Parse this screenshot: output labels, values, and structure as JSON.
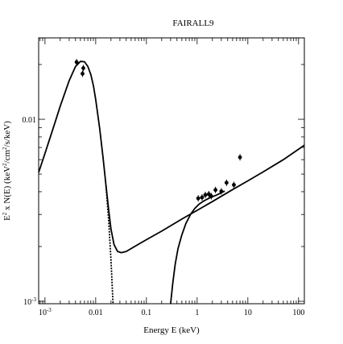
{
  "chart_data": {
    "type": "scatter",
    "title": "FAIRALL9",
    "xlabel": "Energy E (keV)",
    "ylabel_parts": {
      "e": "E",
      "sup1": "2",
      "mid": " x N(E) (keV",
      "sup2": "2",
      "unit": "/cm",
      "sup3": "2",
      "tail": "/s/keV)"
    },
    "x_scale": "log",
    "y_scale": "log",
    "xlim": [
      0.00075,
      130
    ],
    "ylim": [
      0.00097,
      0.028
    ],
    "x_tick_labels": [
      {
        "value": 0.001,
        "base": "10",
        "exp": "-3"
      },
      {
        "value": 0.01,
        "base": "0.01",
        "exp": ""
      },
      {
        "value": 0.1,
        "base": "0.1",
        "exp": ""
      },
      {
        "value": 1,
        "base": "1",
        "exp": ""
      },
      {
        "value": 10,
        "base": "10",
        "exp": ""
      },
      {
        "value": 100,
        "base": "100",
        "exp": ""
      }
    ],
    "y_tick_labels": [
      {
        "value": 0.001,
        "base": "10",
        "exp": "-3"
      },
      {
        "value": 0.01,
        "base": "0.01",
        "exp": ""
      }
    ],
    "series": [
      {
        "name": "",
        "kind": "data",
        "points": [
          {
            "x": 0.0042,
            "y": 0.0206
          },
          {
            "x": 0.0055,
            "y": 0.0178
          },
          {
            "x": 0.0057,
            "y": 0.0191
          },
          {
            "x": 1.05,
            "y": 0.00368
          },
          {
            "x": 1.25,
            "y": 0.00372
          },
          {
            "x": 1.45,
            "y": 0.00384
          },
          {
            "x": 1.7,
            "y": 0.00388
          },
          {
            "x": 1.9,
            "y": 0.00378
          },
          {
            "x": 2.3,
            "y": 0.00409
          },
          {
            "x": 3.0,
            "y": 0.00402
          },
          {
            "x": 3.8,
            "y": 0.00448
          },
          {
            "x": 5.3,
            "y": 0.00436
          },
          {
            "x": 7.0,
            "y": 0.00618
          }
        ]
      },
      {
        "name": "",
        "kind": "unabsorbed-model",
        "points": [
          {
            "x": 0.00075,
            "y": 0.0051
          },
          {
            "x": 0.001,
            "y": 0.0065
          },
          {
            "x": 0.0015,
            "y": 0.0092
          },
          {
            "x": 0.002,
            "y": 0.0118
          },
          {
            "x": 0.003,
            "y": 0.0163
          },
          {
            "x": 0.004,
            "y": 0.0195
          },
          {
            "x": 0.005,
            "y": 0.0208
          },
          {
            "x": 0.006,
            "y": 0.0207
          },
          {
            "x": 0.007,
            "y": 0.0195
          },
          {
            "x": 0.008,
            "y": 0.0176
          },
          {
            "x": 0.009,
            "y": 0.0153
          },
          {
            "x": 0.01,
            "y": 0.0128
          },
          {
            "x": 0.012,
            "y": 0.0089
          },
          {
            "x": 0.014,
            "y": 0.0061
          },
          {
            "x": 0.016,
            "y": 0.0043
          },
          {
            "x": 0.018,
            "y": 0.0032
          },
          {
            "x": 0.02,
            "y": 0.0025
          },
          {
            "x": 0.023,
            "y": 0.00205
          },
          {
            "x": 0.027,
            "y": 0.00188
          },
          {
            "x": 0.032,
            "y": 0.00185
          },
          {
            "x": 0.04,
            "y": 0.00188
          },
          {
            "x": 0.07,
            "y": 0.00206
          },
          {
            "x": 0.1,
            "y": 0.00218
          },
          {
            "x": 0.2,
            "y": 0.00243
          },
          {
            "x": 0.5,
            "y": 0.00283
          },
          {
            "x": 1,
            "y": 0.00316
          },
          {
            "x": 2,
            "y": 0.00353
          },
          {
            "x": 5,
            "y": 0.00411
          },
          {
            "x": 10,
            "y": 0.00459
          },
          {
            "x": 20,
            "y": 0.00514
          },
          {
            "x": 50,
            "y": 0.006
          },
          {
            "x": 130,
            "y": 0.0072
          }
        ]
      },
      {
        "name": "",
        "kind": "soft-component-dropoff",
        "points": [
          {
            "x": 0.016,
            "y": 0.0043
          },
          {
            "x": 0.018,
            "y": 0.0028
          },
          {
            "x": 0.02,
            "y": 0.0017
          },
          {
            "x": 0.021,
            "y": 0.00125
          },
          {
            "x": 0.022,
            "y": 0.00097
          }
        ]
      },
      {
        "name": "",
        "kind": "absorbed-model",
        "points": [
          {
            "x": 0.3,
            "y": 0.00097
          },
          {
            "x": 0.33,
            "y": 0.00125
          },
          {
            "x": 0.37,
            "y": 0.0016
          },
          {
            "x": 0.42,
            "y": 0.00195
          },
          {
            "x": 0.5,
            "y": 0.00232
          },
          {
            "x": 0.6,
            "y": 0.00268
          },
          {
            "x": 0.75,
            "y": 0.00302
          },
          {
            "x": 0.9,
            "y": 0.00324
          },
          {
            "x": 1.1,
            "y": 0.00342
          },
          {
            "x": 1.4,
            "y": 0.00358
          },
          {
            "x": 1.8,
            "y": 0.00371
          },
          {
            "x": 2.5,
            "y": 0.00385
          },
          {
            "x": 3.5,
            "y": 0.00403
          }
        ]
      }
    ]
  }
}
